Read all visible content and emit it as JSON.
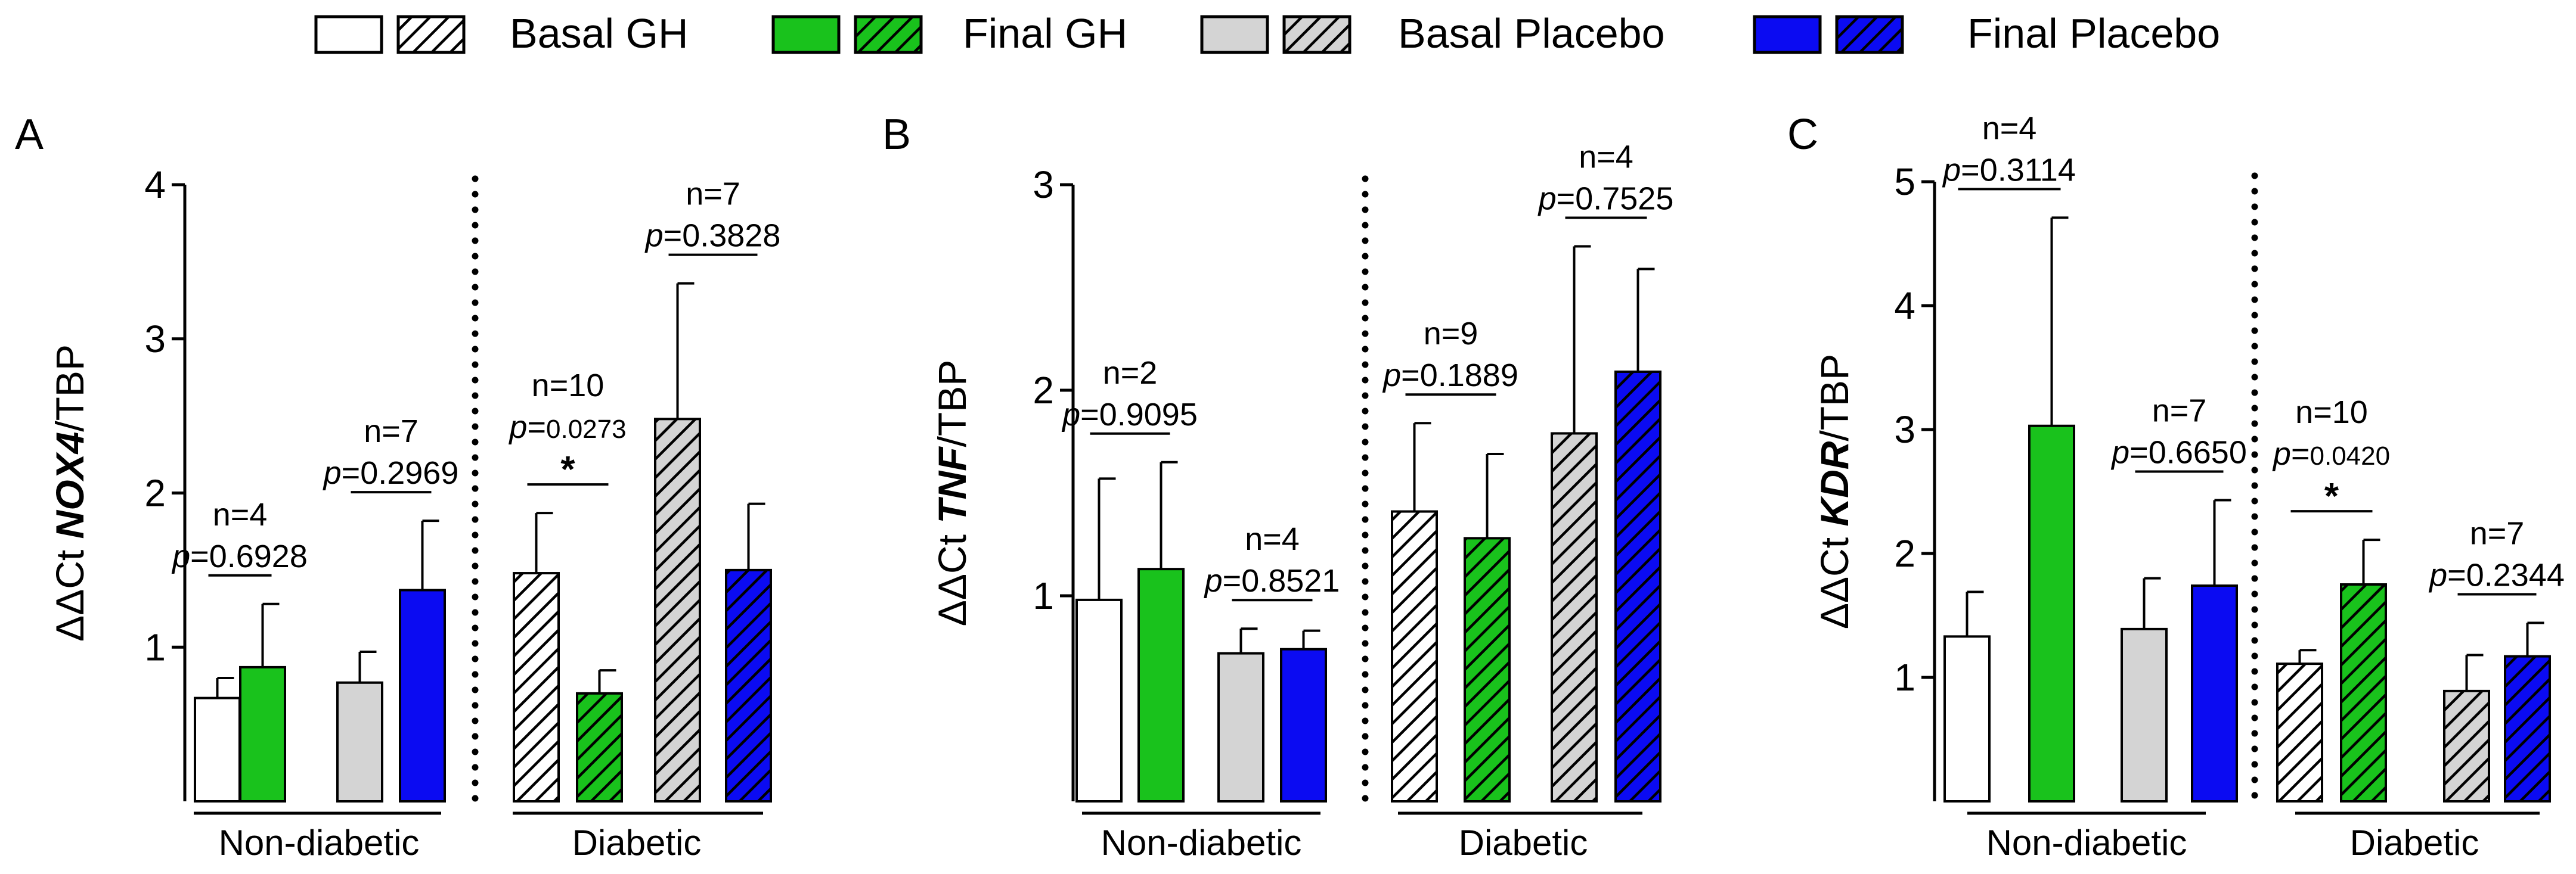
{
  "colors": {
    "basal_gh": "#ffffff",
    "final_gh": "#19c21c",
    "basal_placebo": "#d4d4d4",
    "final_placebo": "#0b0bf2",
    "outline": "#000000"
  },
  "legend": [
    {
      "label": "Basal GH",
      "color": "#ffffff"
    },
    {
      "label": "Final GH",
      "color": "#19c21c"
    },
    {
      "label": "Basal Placebo",
      "color": "#d4d4d4"
    },
    {
      "label": "Final Placebo",
      "color": "#0b0bf2"
    }
  ],
  "chart_data": [
    {
      "type": "bar",
      "panel": "A",
      "gene": "NOX4",
      "ylabel_prefix": "ΔΔCt ",
      "ylabel_suffix": "/TBP",
      "ylim": [
        0,
        4
      ],
      "yticks": [
        "1",
        "2",
        "3",
        "4"
      ],
      "groups": [
        "Non-diabetic",
        "Diabetic"
      ],
      "bars": [
        {
          "series": "Basal GH",
          "group": "Non-diabetic",
          "value": 0.67,
          "err": 0.13
        },
        {
          "series": "Final GH",
          "group": "Non-diabetic",
          "value": 0.87,
          "err": 0.41
        },
        {
          "series": "Basal Placebo",
          "group": "Non-diabetic",
          "value": 0.77,
          "err": 0.2
        },
        {
          "series": "Final Placebo",
          "group": "Non-diabetic",
          "value": 1.37,
          "err": 0.45
        },
        {
          "series": "Basal GH",
          "group": "Diabetic",
          "value": 1.48,
          "err": 0.39
        },
        {
          "series": "Final GH",
          "group": "Diabetic",
          "value": 0.7,
          "err": 0.15
        },
        {
          "series": "Basal Placebo",
          "group": "Diabetic",
          "value": 2.48,
          "err": 0.88
        },
        {
          "series": "Final Placebo",
          "group": "Diabetic",
          "value": 1.5,
          "err": 0.43
        }
      ],
      "annotations": [
        {
          "pair": [
            0,
            1
          ],
          "n": "n=4",
          "p": "0.6928",
          "star": "",
          "small": false
        },
        {
          "pair": [
            2,
            3
          ],
          "n": "n=7",
          "p": "0.2969",
          "star": "",
          "small": false
        },
        {
          "pair": [
            4,
            5
          ],
          "n": "n=10",
          "p": "0.0273",
          "star": "*",
          "small": true
        },
        {
          "pair": [
            6,
            7
          ],
          "n": "n=7",
          "p": "0.3828",
          "star": "",
          "small": false
        }
      ]
    },
    {
      "type": "bar",
      "panel": "B",
      "gene": "TNF",
      "ylabel_prefix": "ΔΔCt ",
      "ylabel_suffix": "/TBP",
      "ylim": [
        0,
        3
      ],
      "yticks": [
        "1",
        "2",
        "3"
      ],
      "groups": [
        "Non-diabetic",
        "Diabetic"
      ],
      "bars": [
        {
          "series": "Basal GH",
          "group": "Non-diabetic",
          "value": 0.98,
          "err": 0.59
        },
        {
          "series": "Final GH",
          "group": "Non-diabetic",
          "value": 1.13,
          "err": 0.52
        },
        {
          "series": "Basal Placebo",
          "group": "Non-diabetic",
          "value": 0.72,
          "err": 0.12
        },
        {
          "series": "Final Placebo",
          "group": "Non-diabetic",
          "value": 0.74,
          "err": 0.09
        },
        {
          "series": "Basal GH",
          "group": "Diabetic",
          "value": 1.41,
          "err": 0.43
        },
        {
          "series": "Final GH",
          "group": "Diabetic",
          "value": 1.28,
          "err": 0.41
        },
        {
          "series": "Basal Placebo",
          "group": "Diabetic",
          "value": 1.79,
          "err": 0.91
        },
        {
          "series": "Final Placebo",
          "group": "Diabetic",
          "value": 2.09,
          "err": 0.5
        }
      ],
      "annotations": [
        {
          "pair": [
            0,
            1
          ],
          "n": "n=2",
          "p": "0.9095",
          "star": "",
          "small": false
        },
        {
          "pair": [
            2,
            3
          ],
          "n": "n=4",
          "p": "0.8521",
          "star": "",
          "small": false
        },
        {
          "pair": [
            4,
            5
          ],
          "n": "n=9",
          "p": "0.1889",
          "star": "",
          "small": false
        },
        {
          "pair": [
            6,
            7
          ],
          "n": "n=4",
          "p": "0.7525",
          "star": "",
          "small": false
        }
      ]
    },
    {
      "type": "bar",
      "panel": "C",
      "gene": "KDR",
      "ylabel_prefix": "ΔΔCt ",
      "ylabel_suffix": "/TBP",
      "ylim": [
        0,
        5
      ],
      "yticks": [
        "1",
        "2",
        "3",
        "4",
        "5"
      ],
      "groups": [
        "Non-diabetic",
        "Diabetic"
      ],
      "bars": [
        {
          "series": "Basal GH",
          "group": "Non-diabetic",
          "value": 1.33,
          "err": 0.36
        },
        {
          "series": "Final GH",
          "group": "Non-diabetic",
          "value": 3.03,
          "err": 1.68
        },
        {
          "series": "Basal Placebo",
          "group": "Non-diabetic",
          "value": 1.39,
          "err": 0.41
        },
        {
          "series": "Final Placebo",
          "group": "Non-diabetic",
          "value": 1.74,
          "err": 0.69
        },
        {
          "series": "Basal GH",
          "group": "Diabetic",
          "value": 1.11,
          "err": 0.11
        },
        {
          "series": "Final GH",
          "group": "Diabetic",
          "value": 1.75,
          "err": 0.36
        },
        {
          "series": "Basal Placebo",
          "group": "Diabetic",
          "value": 0.89,
          "err": 0.29
        },
        {
          "series": "Final Placebo",
          "group": "Diabetic",
          "value": 1.17,
          "err": 0.27
        }
      ],
      "annotations": [
        {
          "pair": [
            0,
            1
          ],
          "n": "n=4",
          "p": "0.3114",
          "star": "",
          "small": false
        },
        {
          "pair": [
            2,
            3
          ],
          "n": "n=7",
          "p": "0.6650",
          "star": "",
          "small": false
        },
        {
          "pair": [
            4,
            5
          ],
          "n": "n=10",
          "p": "0.0420",
          "star": "*",
          "small": true
        },
        {
          "pair": [
            6,
            7
          ],
          "n": "n=7",
          "p": "0.2344",
          "star": "",
          "small": false
        }
      ]
    }
  ]
}
